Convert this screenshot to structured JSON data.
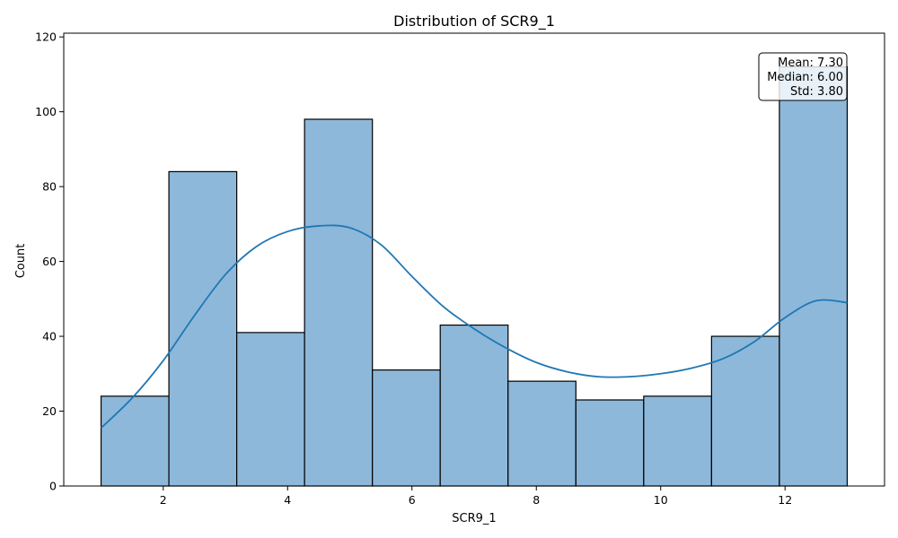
{
  "chart_data": {
    "type": "bar",
    "title": "Distribution of SCR9_1",
    "xlabel": "SCR9_1",
    "ylabel": "Count",
    "xlim": [
      0.4,
      13.6
    ],
    "ylim": [
      0,
      121
    ],
    "xticks": [
      2,
      4,
      6,
      8,
      10,
      12
    ],
    "yticks": [
      0,
      20,
      40,
      60,
      80,
      100,
      120
    ],
    "bin_edges": [
      1.0,
      2.0909,
      3.1818,
      4.2727,
      5.3636,
      6.4545,
      7.5455,
      8.6364,
      9.7273,
      10.8182,
      11.9091,
      13.0
    ],
    "values": [
      24,
      84,
      41,
      98,
      31,
      43,
      28,
      23,
      24,
      40,
      112
    ],
    "bar_color": "#8db8da",
    "bar_edge_color": "#000000",
    "kde": {
      "color": "#1f77b4",
      "x": [
        1.0,
        1.5,
        2.0,
        2.5,
        3.0,
        3.5,
        4.0,
        4.5,
        5.0,
        5.5,
        6.0,
        6.5,
        7.0,
        7.5,
        8.0,
        8.5,
        9.0,
        9.5,
        10.0,
        10.5,
        11.0,
        11.5,
        12.0,
        12.5,
        13.0
      ],
      "y": [
        15.5,
        23.5,
        33.5,
        45.5,
        56.5,
        64.0,
        68.0,
        69.5,
        69.0,
        64.5,
        56.0,
        48.0,
        42.0,
        37.0,
        33.0,
        30.5,
        29.2,
        29.2,
        30.0,
        31.5,
        34.0,
        38.5,
        45.0,
        49.5,
        49.0
      ]
    },
    "stats": {
      "lines": [
        "Mean: 7.30",
        "Median: 6.00",
        "Std: 3.80"
      ]
    },
    "grid": false,
    "legend": "none"
  }
}
